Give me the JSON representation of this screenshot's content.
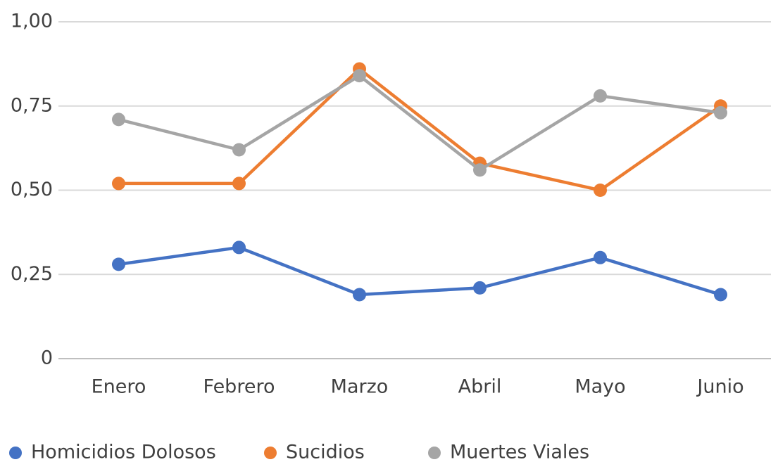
{
  "chart_data": {
    "type": "line",
    "categories": [
      "Enero",
      "Febrero",
      "Marzo",
      "Abril",
      "Mayo",
      "Junio"
    ],
    "series": [
      {
        "name": "Homicidios Dolosos",
        "color": "#4472c4",
        "values": [
          0.28,
          0.33,
          0.19,
          0.21,
          0.3,
          0.19
        ]
      },
      {
        "name": "Sucidios",
        "color": "#ed7d31",
        "values": [
          0.52,
          0.52,
          0.86,
          0.58,
          0.5,
          0.75
        ]
      },
      {
        "name": "Muertes Viales",
        "color": "#a5a5a5",
        "values": [
          0.71,
          0.62,
          0.84,
          0.56,
          0.78,
          0.73
        ]
      }
    ],
    "ylim": [
      0,
      1
    ],
    "yticks": [
      0,
      {
        "value": 0.25,
        "label": "0,25"
      },
      {
        "value": 0.5,
        "label": "0,50"
      },
      {
        "value": 0.75,
        "label": "0,75"
      },
      {
        "value": 1,
        "label": "1,00"
      }
    ],
    "grid": true,
    "legend": "bottom"
  }
}
